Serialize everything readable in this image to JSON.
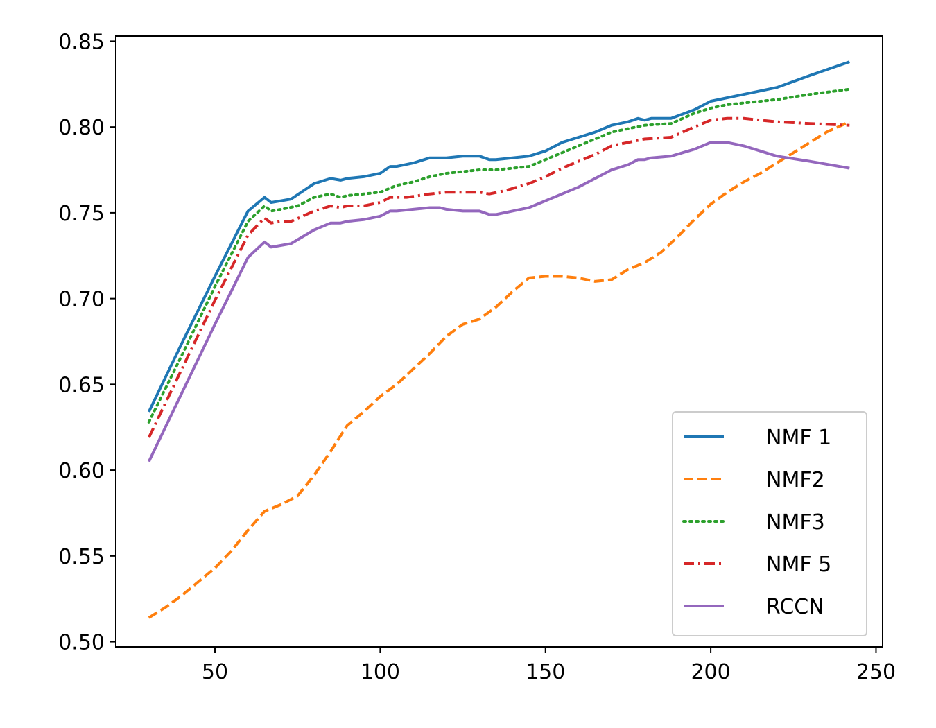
{
  "chart_data": {
    "type": "line",
    "title": "",
    "xlabel": "",
    "ylabel": "",
    "xlim": [
      20,
      252
    ],
    "ylim": [
      0.497,
      0.853
    ],
    "xticks": [
      50,
      100,
      150,
      200,
      250
    ],
    "yticks": [
      0.5,
      0.55,
      0.6,
      0.65,
      0.7,
      0.75,
      0.8,
      0.85
    ],
    "xtick_labels": [
      "50",
      "100",
      "150",
      "200",
      "250"
    ],
    "ytick_labels": [
      "0.50",
      "0.55",
      "0.60",
      "0.65",
      "0.70",
      "0.75",
      "0.80",
      "0.85"
    ],
    "grid": false,
    "legend_position": "lower-right",
    "series": [
      {
        "name": "NMF 1",
        "color": "#1f77b4",
        "dash": "solid",
        "points": [
          [
            30,
            0.634
          ],
          [
            40,
            0.674
          ],
          [
            50,
            0.713
          ],
          [
            60,
            0.751
          ],
          [
            65,
            0.759
          ],
          [
            67,
            0.756
          ],
          [
            70,
            0.757
          ],
          [
            73,
            0.758
          ],
          [
            80,
            0.767
          ],
          [
            85,
            0.77
          ],
          [
            88,
            0.769
          ],
          [
            90,
            0.77
          ],
          [
            95,
            0.771
          ],
          [
            100,
            0.773
          ],
          [
            103,
            0.777
          ],
          [
            105,
            0.777
          ],
          [
            110,
            0.779
          ],
          [
            115,
            0.782
          ],
          [
            120,
            0.782
          ],
          [
            125,
            0.783
          ],
          [
            130,
            0.783
          ],
          [
            133,
            0.781
          ],
          [
            135,
            0.781
          ],
          [
            140,
            0.782
          ],
          [
            145,
            0.783
          ],
          [
            150,
            0.786
          ],
          [
            155,
            0.791
          ],
          [
            160,
            0.794
          ],
          [
            165,
            0.797
          ],
          [
            170,
            0.801
          ],
          [
            175,
            0.803
          ],
          [
            178,
            0.805
          ],
          [
            180,
            0.804
          ],
          [
            182,
            0.805
          ],
          [
            188,
            0.805
          ],
          [
            195,
            0.81
          ],
          [
            200,
            0.815
          ],
          [
            210,
            0.819
          ],
          [
            220,
            0.823
          ],
          [
            230,
            0.83
          ],
          [
            242,
            0.838
          ]
        ]
      },
      {
        "name": "NMF2",
        "color": "#ff7f0e",
        "dash": "dashed",
        "points": [
          [
            30,
            0.514
          ],
          [
            35,
            0.52
          ],
          [
            40,
            0.527
          ],
          [
            45,
            0.535
          ],
          [
            50,
            0.543
          ],
          [
            55,
            0.553
          ],
          [
            60,
            0.565
          ],
          [
            65,
            0.576
          ],
          [
            70,
            0.58
          ],
          [
            75,
            0.585
          ],
          [
            80,
            0.597
          ],
          [
            85,
            0.611
          ],
          [
            90,
            0.626
          ],
          [
            95,
            0.634
          ],
          [
            100,
            0.643
          ],
          [
            105,
            0.65
          ],
          [
            110,
            0.659
          ],
          [
            115,
            0.668
          ],
          [
            120,
            0.678
          ],
          [
            125,
            0.685
          ],
          [
            130,
            0.688
          ],
          [
            135,
            0.695
          ],
          [
            140,
            0.704
          ],
          [
            145,
            0.712
          ],
          [
            150,
            0.713
          ],
          [
            155,
            0.713
          ],
          [
            160,
            0.712
          ],
          [
            165,
            0.71
          ],
          [
            170,
            0.711
          ],
          [
            175,
            0.717
          ],
          [
            180,
            0.721
          ],
          [
            185,
            0.727
          ],
          [
            190,
            0.736
          ],
          [
            195,
            0.746
          ],
          [
            200,
            0.755
          ],
          [
            205,
            0.762
          ],
          [
            210,
            0.768
          ],
          [
            215,
            0.773
          ],
          [
            220,
            0.779
          ],
          [
            225,
            0.785
          ],
          [
            230,
            0.791
          ],
          [
            235,
            0.797
          ],
          [
            242,
            0.803
          ]
        ]
      },
      {
        "name": "NMF3",
        "color": "#2ca02c",
        "dash": "dotted",
        "points": [
          [
            30,
            0.628
          ],
          [
            40,
            0.667
          ],
          [
            50,
            0.707
          ],
          [
            60,
            0.745
          ],
          [
            65,
            0.754
          ],
          [
            67,
            0.751
          ],
          [
            70,
            0.752
          ],
          [
            75,
            0.754
          ],
          [
            80,
            0.759
          ],
          [
            85,
            0.761
          ],
          [
            88,
            0.759
          ],
          [
            90,
            0.76
          ],
          [
            95,
            0.761
          ],
          [
            100,
            0.762
          ],
          [
            105,
            0.766
          ],
          [
            110,
            0.768
          ],
          [
            115,
            0.771
          ],
          [
            120,
            0.773
          ],
          [
            125,
            0.774
          ],
          [
            130,
            0.775
          ],
          [
            135,
            0.775
          ],
          [
            140,
            0.776
          ],
          [
            145,
            0.777
          ],
          [
            150,
            0.781
          ],
          [
            155,
            0.785
          ],
          [
            160,
            0.789
          ],
          [
            165,
            0.793
          ],
          [
            170,
            0.797
          ],
          [
            175,
            0.799
          ],
          [
            180,
            0.801
          ],
          [
            188,
            0.802
          ],
          [
            195,
            0.808
          ],
          [
            200,
            0.811
          ],
          [
            205,
            0.813
          ],
          [
            210,
            0.814
          ],
          [
            220,
            0.816
          ],
          [
            230,
            0.819
          ],
          [
            242,
            0.822
          ]
        ]
      },
      {
        "name": "NMF 5",
        "color": "#d62728",
        "dash": "dashdot",
        "points": [
          [
            30,
            0.619
          ],
          [
            40,
            0.659
          ],
          [
            50,
            0.699
          ],
          [
            60,
            0.737
          ],
          [
            65,
            0.747
          ],
          [
            67,
            0.744
          ],
          [
            70,
            0.745
          ],
          [
            73,
            0.745
          ],
          [
            80,
            0.751
          ],
          [
            85,
            0.754
          ],
          [
            88,
            0.753
          ],
          [
            90,
            0.754
          ],
          [
            95,
            0.754
          ],
          [
            100,
            0.756
          ],
          [
            103,
            0.759
          ],
          [
            108,
            0.759
          ],
          [
            115,
            0.761
          ],
          [
            120,
            0.762
          ],
          [
            125,
            0.762
          ],
          [
            130,
            0.762
          ],
          [
            133,
            0.761
          ],
          [
            138,
            0.763
          ],
          [
            145,
            0.767
          ],
          [
            150,
            0.771
          ],
          [
            155,
            0.776
          ],
          [
            160,
            0.78
          ],
          [
            165,
            0.784
          ],
          [
            170,
            0.789
          ],
          [
            175,
            0.791
          ],
          [
            180,
            0.793
          ],
          [
            188,
            0.794
          ],
          [
            195,
            0.8
          ],
          [
            200,
            0.804
          ],
          [
            205,
            0.805
          ],
          [
            210,
            0.805
          ],
          [
            215,
            0.804
          ],
          [
            220,
            0.803
          ],
          [
            230,
            0.802
          ],
          [
            242,
            0.801
          ]
        ]
      },
      {
        "name": "RCCN",
        "color": "#9467bd",
        "dash": "solid",
        "points": [
          [
            30,
            0.605
          ],
          [
            40,
            0.645
          ],
          [
            50,
            0.685
          ],
          [
            60,
            0.724
          ],
          [
            65,
            0.733
          ],
          [
            67,
            0.73
          ],
          [
            70,
            0.731
          ],
          [
            73,
            0.732
          ],
          [
            80,
            0.74
          ],
          [
            85,
            0.744
          ],
          [
            88,
            0.744
          ],
          [
            90,
            0.745
          ],
          [
            95,
            0.746
          ],
          [
            100,
            0.748
          ],
          [
            103,
            0.751
          ],
          [
            105,
            0.751
          ],
          [
            110,
            0.752
          ],
          [
            115,
            0.753
          ],
          [
            118,
            0.753
          ],
          [
            120,
            0.752
          ],
          [
            125,
            0.751
          ],
          [
            130,
            0.751
          ],
          [
            133,
            0.749
          ],
          [
            135,
            0.749
          ],
          [
            140,
            0.751
          ],
          [
            145,
            0.753
          ],
          [
            150,
            0.757
          ],
          [
            155,
            0.761
          ],
          [
            160,
            0.765
          ],
          [
            165,
            0.77
          ],
          [
            170,
            0.775
          ],
          [
            175,
            0.778
          ],
          [
            178,
            0.781
          ],
          [
            180,
            0.781
          ],
          [
            182,
            0.782
          ],
          [
            188,
            0.783
          ],
          [
            195,
            0.787
          ],
          [
            200,
            0.791
          ],
          [
            205,
            0.791
          ],
          [
            210,
            0.789
          ],
          [
            215,
            0.786
          ],
          [
            220,
            0.783
          ],
          [
            230,
            0.78
          ],
          [
            242,
            0.776
          ]
        ]
      }
    ]
  }
}
